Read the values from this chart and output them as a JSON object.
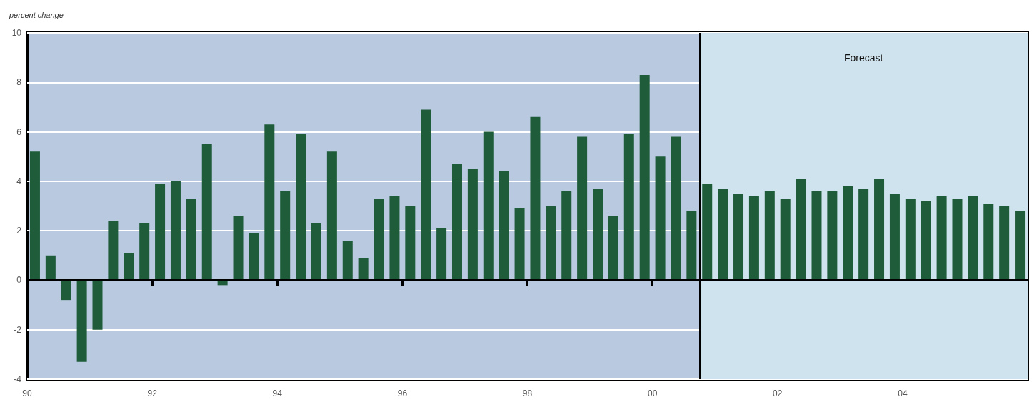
{
  "chart_data": {
    "type": "bar",
    "ylabel": "percent change",
    "color": "#1f5c3a",
    "x": [
      1990.125,
      1990.375,
      1990.625,
      1990.875,
      1991.125,
      1991.375,
      1991.625,
      1991.875,
      1992.125,
      1992.375,
      1992.625,
      1992.875,
      1993.125,
      1993.375,
      1993.625,
      1993.875,
      1994.125,
      1994.375,
      1994.625,
      1994.875,
      1995.125,
      1995.375,
      1995.625,
      1995.875,
      1996.125,
      1996.375,
      1996.625,
      1996.875,
      1997.125,
      1997.375,
      1997.625,
      1997.875,
      1998.125,
      1998.375,
      1998.625,
      1998.875,
      1999.125,
      1999.375,
      1999.625,
      1999.875,
      2000.125,
      2000.375,
      2000.625,
      2000.875,
      2001.125,
      2001.375,
      2001.625,
      2001.875,
      2002.125,
      2002.375,
      2002.625,
      2002.875,
      2003.125,
      2003.375,
      2003.625,
      2003.875,
      2004.125,
      2004.375,
      2004.625,
      2004.875,
      2005.125,
      2005.375,
      2005.625,
      2005.875
    ],
    "values": [
      5.2,
      1.0,
      -0.8,
      -3.3,
      -2.0,
      2.4,
      1.1,
      2.3,
      3.9,
      4.0,
      3.3,
      5.5,
      -0.2,
      2.6,
      1.9,
      6.3,
      3.6,
      5.9,
      2.3,
      5.2,
      1.6,
      0.9,
      3.3,
      3.4,
      3.0,
      6.9,
      2.1,
      4.7,
      4.5,
      6.0,
      4.4,
      2.9,
      6.6,
      3.0,
      3.6,
      5.8,
      3.7,
      2.6,
      5.9,
      8.3,
      5.0,
      5.8,
      2.8,
      3.9,
      3.7,
      3.5,
      3.4,
      3.6,
      3.3,
      4.1,
      3.6,
      3.6,
      3.8,
      3.7,
      4.1,
      3.5,
      3.3,
      3.2,
      3.4,
      3.3,
      3.4,
      3.1,
      3.0,
      2.8
    ],
    "xlim": [
      1990,
      2006
    ],
    "xticks": [
      {
        "value": 1990,
        "label": "90"
      },
      {
        "value": 1992,
        "label": "92"
      },
      {
        "value": 1994,
        "label": "94"
      },
      {
        "value": 1996,
        "label": "96"
      },
      {
        "value": 1998,
        "label": "98"
      },
      {
        "value": 2000,
        "label": "00"
      },
      {
        "value": 2002,
        "label": "02"
      },
      {
        "value": 2004,
        "label": "04"
      }
    ],
    "ylim": [
      -4,
      10
    ],
    "yticks": [
      -4,
      -2,
      0,
      2,
      4,
      6,
      8,
      10
    ],
    "grid": "y",
    "ref_lines": [
      {
        "axis": "y",
        "value": 0,
        "color": "#000000"
      },
      {
        "axis": "x",
        "value": 2000.75,
        "color": "#000000"
      }
    ],
    "bands": [
      {
        "axis": "x",
        "from": 2000.75,
        "to": 2006,
        "label": "Forecast",
        "color": "#cfe3ee"
      }
    ]
  }
}
